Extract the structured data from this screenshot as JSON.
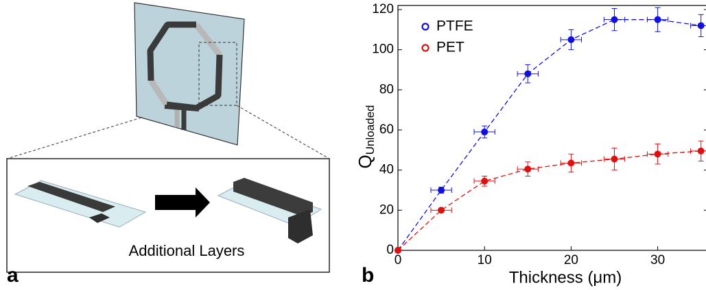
{
  "panels": {
    "a": "a",
    "b": "b"
  },
  "diagram": {
    "caption": "Additional Layers"
  },
  "chart_data": {
    "type": "scatter",
    "x_label": "Thickness (μm)",
    "y_label": {
      "main": "Q",
      "sub": "Unloaded"
    },
    "xlim": [
      0,
      35.5
    ],
    "ylim": [
      0,
      120
    ],
    "xticks": [
      0,
      10,
      20,
      30
    ],
    "yticks": [
      0,
      20,
      40,
      60,
      80,
      100,
      120
    ],
    "legend": "upper left",
    "line_style": "dashed",
    "series": [
      {
        "name": "PTFE",
        "color": "#1010e0",
        "x": [
          0,
          5,
          10,
          15,
          20,
          25,
          30,
          35
        ],
        "values": [
          0,
          30,
          59,
          88,
          105,
          115,
          115,
          112
        ],
        "yerr": [
          0,
          1.5,
          3,
          4.5,
          5,
          5.5,
          6,
          5.5
        ],
        "xerr": [
          0,
          1.2,
          1.2,
          1.2,
          1.2,
          1.2,
          1.2,
          1.2
        ]
      },
      {
        "name": "PET",
        "color": "#e01010",
        "x": [
          0,
          5,
          10,
          15,
          20,
          25,
          30,
          35
        ],
        "values": [
          0,
          20,
          34.5,
          40.5,
          43.5,
          45.5,
          48,
          49.5
        ],
        "yerr": [
          0,
          1,
          2.5,
          3.5,
          4.5,
          5.5,
          5,
          5
        ],
        "xerr": [
          0,
          1.2,
          1.2,
          1.2,
          1.2,
          1.2,
          1.2,
          1.2
        ]
      }
    ]
  }
}
